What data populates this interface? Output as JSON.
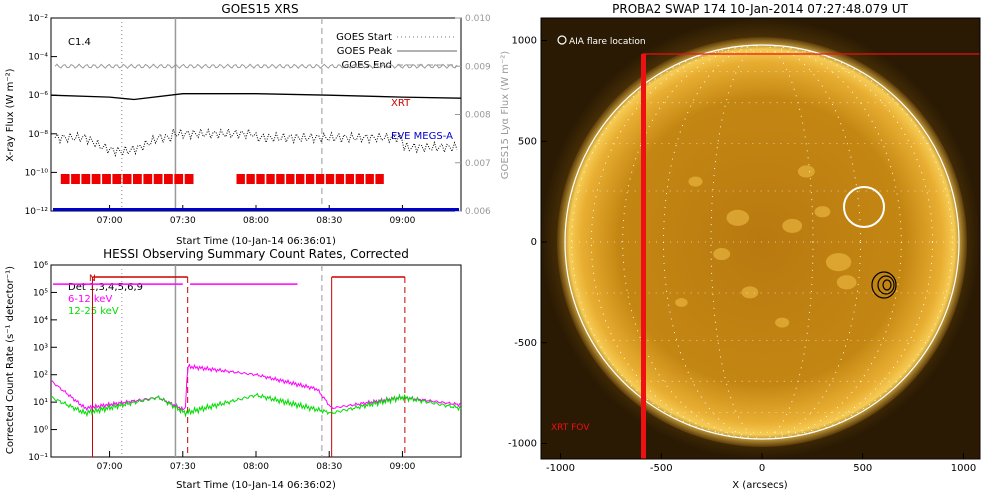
{
  "goes_panel": {
    "title": "GOES15 XRS",
    "class_label": "C1.4",
    "ylabel_left": "X-ray Flux (W m⁻²)",
    "ylabel_right": "GOES15 Lyα Flux (W m⁻²)",
    "xlabel": "Start Time (10-Jan-14 06:36:01)",
    "yticks_left": [
      "10⁻¹²",
      "10⁻¹⁰",
      "10⁻⁸",
      "10⁻⁶",
      "10⁻⁴",
      "10⁻²"
    ],
    "yticks_right": [
      "0.006",
      "0.007",
      "0.008",
      "0.009",
      "0.010"
    ],
    "xticks": [
      "07:00",
      "07:30",
      "08:00",
      "08:30",
      "09:00"
    ],
    "legend": [
      "GOES Start",
      "GOES Peak",
      "GOES End"
    ],
    "series_labels": {
      "xrt": "XRT",
      "eve": "EVE MEGS-A"
    },
    "colors": {
      "xrt": "#cc0000",
      "eve": "#0000cc",
      "grey": "#999999"
    }
  },
  "hessi_panel": {
    "title": "HESSI Observing Summary Count Rates, Corrected",
    "ylabel": "Corrected Count Rate (s⁻¹ detector⁻¹)",
    "xlabel": "Start Time (10-Jan-14 06:36:02)",
    "yticks": [
      "10⁻¹",
      "10⁰",
      "10¹",
      "10²",
      "10³",
      "10⁴",
      "10⁵",
      "10⁶"
    ],
    "xticks": [
      "07:00",
      "07:30",
      "08:00",
      "08:30",
      "09:00"
    ],
    "legend": [
      "Det 1,3,4,5,6,9",
      "6-12 keV",
      "12-25 keV"
    ],
    "marker_n": "N",
    "colors": {
      "low": "#ff00ff",
      "high": "#00dd00",
      "flags": "#cc0000"
    }
  },
  "swap_panel": {
    "title": "PROBA2 SWAP 174 10-Jan-2014 07:27:48.079 UT",
    "xlabel": "X (arcsecs)",
    "xticks": [
      "-1000",
      "-500",
      "0",
      "500",
      "1000"
    ],
    "yticks": [
      "1000",
      "500",
      "0",
      "-500",
      "-1000"
    ],
    "label_flare": "AIA flare location",
    "label_fov": "XRT FOV"
  },
  "chart_data": [
    {
      "type": "line",
      "title": "GOES15 XRS",
      "xlabel": "Start Time (10-Jan-14 06:36:01)",
      "ylabel": "X-ray Flux (W m⁻²)",
      "x_range": [
        "06:36",
        "09:24"
      ],
      "ylim_log": [
        1e-12,
        0.01
      ],
      "y2lim": [
        0.006,
        0.01
      ],
      "events": {
        "goes_start": "07:05",
        "goes_peak": "07:27",
        "goes_end": "08:27"
      },
      "series": [
        {
          "name": "XRT",
          "x": [
            "06:36",
            "07:00",
            "07:10",
            "07:30",
            "08:00",
            "08:30",
            "09:00",
            "09:24"
          ],
          "values": [
            1e-06,
            8e-07,
            6e-07,
            1.2e-06,
            1.2e-06,
            1e-06,
            8e-07,
            7e-07
          ]
        },
        {
          "name": "EVE MEGS-A",
          "x": [
            "06:36",
            "09:24"
          ],
          "values": [
            1e-12,
            1e-12
          ]
        }
      ],
      "grey_series_y2": {
        "x": [
          "06:36",
          "09:24"
        ],
        "values": [
          0.009,
          0.009
        ]
      },
      "xrt_coverage": [
        [
          "06:40",
          "07:35"
        ],
        [
          "07:52",
          "08:53"
        ]
      ]
    },
    {
      "type": "line",
      "title": "HESSI Observing Summary Count Rates, Corrected",
      "xlabel": "Start Time (10-Jan-14 06:36:02)",
      "ylabel": "Corrected Count Rate (s⁻¹ detector⁻¹)",
      "ylim_log": [
        0.1,
        1000000.0
      ],
      "series": [
        {
          "name": "6-12 keV",
          "x": [
            "06:36",
            "06:50",
            "07:20",
            "07:31",
            "07:32",
            "08:00",
            "08:25",
            "08:31",
            "09:00",
            "09:24"
          ],
          "values": [
            60,
            6,
            15,
            5,
            200,
            100,
            30,
            6,
            15,
            8
          ]
        },
        {
          "name": "12-25 keV",
          "x": [
            "06:36",
            "06:50",
            "07:20",
            "07:31",
            "08:00",
            "08:31",
            "09:00",
            "09:24"
          ],
          "values": [
            15,
            4,
            15,
            4,
            18,
            4,
            15,
            6
          ]
        }
      ]
    }
  ]
}
